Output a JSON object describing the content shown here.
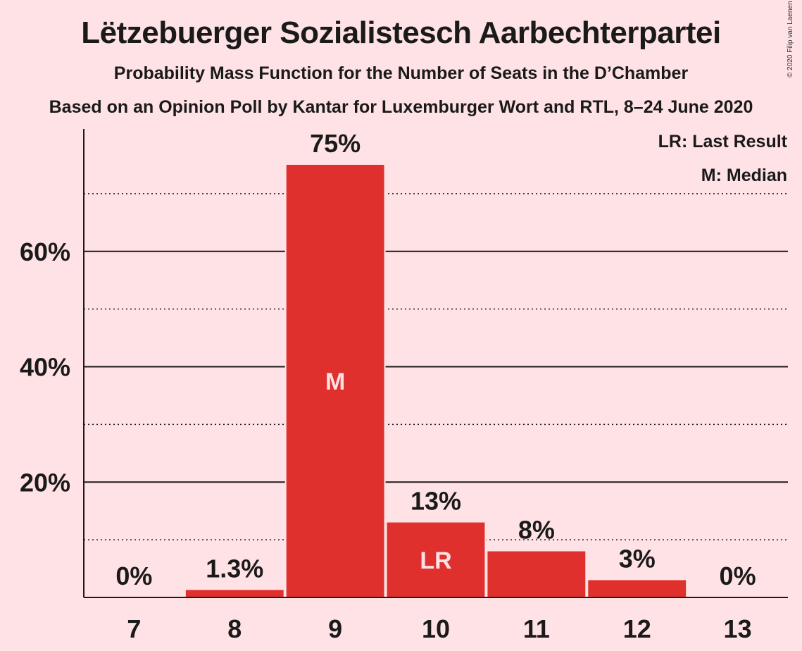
{
  "title": "Lëtzebuerger Sozialistesch Aarbechterpartei",
  "subtitle": "Probability Mass Function for the Number of Seats in the D’Chamber",
  "subtitle2": "Based on an Opinion Poll by Kantar for Luxemburger Wort and RTL, 8–24 June 2020",
  "copyright": "© 2020 Filip van Laenen",
  "legend": {
    "last_result": "LR: Last Result",
    "median": "M: Median"
  },
  "colors": {
    "background": "#ffe2e5",
    "bar": "#e0302d",
    "text": "#1a1a1a"
  },
  "chart_data": {
    "type": "bar",
    "categories": [
      "7",
      "8",
      "9",
      "10",
      "11",
      "12",
      "13"
    ],
    "values": [
      0,
      1.3,
      75,
      13,
      8,
      3,
      0
    ],
    "value_labels": [
      "0%",
      "1.3%",
      "75%",
      "13%",
      "8%",
      "3%",
      "0%"
    ],
    "bar_markers": [
      "",
      "",
      "M",
      "LR",
      "",
      "",
      ""
    ],
    "ylim": [
      0,
      80
    ],
    "yticks": [
      20,
      40,
      60
    ],
    "ytick_labels": [
      "20%",
      "40%",
      "60%"
    ],
    "minor_gridlines": [
      10,
      30,
      50,
      70
    ],
    "xlabel": "",
    "ylabel": ""
  }
}
